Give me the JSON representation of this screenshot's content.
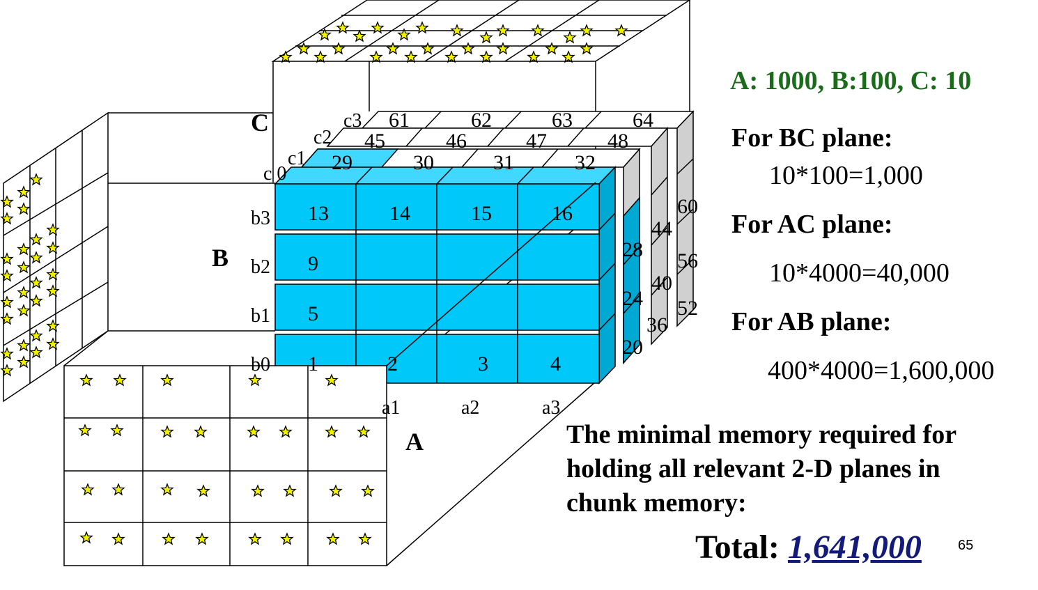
{
  "sizes": "A: 1000, B:100, C: 10",
  "planes": [
    {
      "heading": "For BC plane:",
      "value": "10*100=1,000"
    },
    {
      "heading": "For AC plane:",
      "value": "10*4000=40,000"
    },
    {
      "heading": "For AB plane:",
      "value": "400*4000=1,600,000"
    }
  ],
  "note": "The minimal memory required for holding all relevant 2-D planes in chunk memory:",
  "total": {
    "label": "Total:",
    "value": "1,641,000"
  },
  "page_number": "65",
  "dimensions": {
    "A": "A",
    "B": "B",
    "C": "C"
  },
  "a_labels": [
    "a1",
    "a2",
    "a3"
  ],
  "b_labels": [
    "b3",
    "b2",
    "b1",
    "b0"
  ],
  "c_labels": [
    "c3",
    "c2",
    "c1",
    "c 0"
  ],
  "front_chunks": [
    [
      "13",
      "14",
      "15",
      "16"
    ],
    [
      "9",
      "",
      "",
      ""
    ],
    [
      "5",
      "",
      "",
      ""
    ],
    [
      "1",
      "2",
      "3",
      "4"
    ]
  ],
  "layer_c1": [
    "29",
    "30",
    "31",
    "32"
  ],
  "layer_c2": [
    "45",
    "46",
    "47",
    "48"
  ],
  "layer_c3": [
    "61",
    "62",
    "63",
    "64"
  ],
  "right_side_numbers": [
    "60",
    "44",
    "28",
    "56",
    "40",
    "24",
    "52",
    "36",
    "20"
  ],
  "colors": {
    "chunk_fill": "#00c8f8",
    "chunk_side": "#00a8d4",
    "chunk_top": "#40d8ff",
    "grey_side": "#d0d0d0",
    "title_green": "#1a6b1a",
    "total_blue": "#141a7a",
    "star_fill": "#f0f000"
  }
}
